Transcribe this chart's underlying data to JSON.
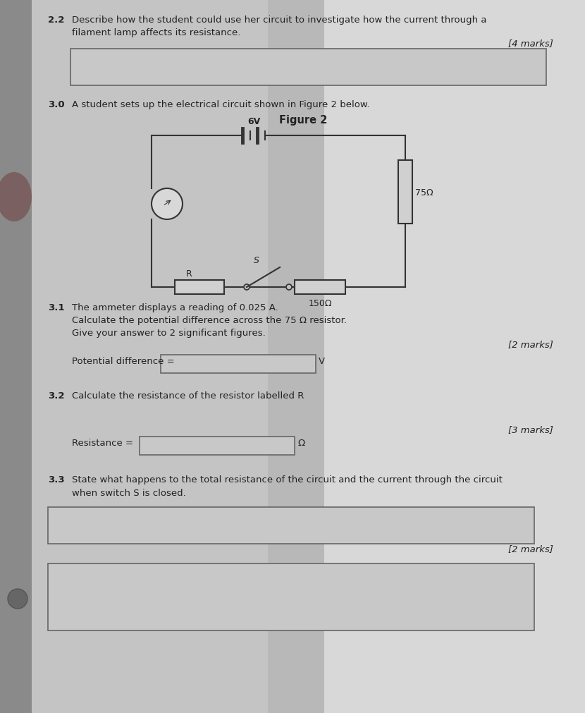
{
  "text_color": "#222222",
  "q22_label": "2.2",
  "q22_text": "Describe how the student could use her circuit to investigate how the current through a\nfilament lamp affects its resistance.",
  "q22_marks": "[4 marks]",
  "q30_label": "3.0",
  "q30_text": "A student sets up the electrical circuit shown in Figure 2 below.",
  "figure_label": "Figure 2",
  "voltage_label": "6V",
  "r75_label": "75Ω",
  "r150_label": "150Ω",
  "r_label": "R",
  "s_label": "S",
  "a_label": "A",
  "q31_label": "3.1",
  "q31_line1": "The ammeter displays a reading of 0.025 A.",
  "q31_line2": "Calculate the potential difference across the 75 Ω resistor.",
  "q31_line3": "Give your answer to 2 significant figures.",
  "q31_marks": "[2 marks]",
  "pd_label": "Potential difference =",
  "pd_unit": "V",
  "q32_label": "3.2",
  "q32_text": "Calculate the resistance of the resistor labelled R",
  "q32_marks": "[3 marks]",
  "res_label": "Resistance =",
  "res_unit": "Ω",
  "q33_label": "3.3",
  "q33_text": "State what happens to the total resistance of the circuit and the current through the circuit\nwhen switch S is closed.",
  "q33_marks": "[2 marks]",
  "left_bg": "#b8b8b8",
  "center_bg": "#d0d0d0",
  "right_bg": "#c8c8c8",
  "paper_bg": "#cccccc",
  "box_face": "#c8c8c8",
  "box_edge": "#666666"
}
